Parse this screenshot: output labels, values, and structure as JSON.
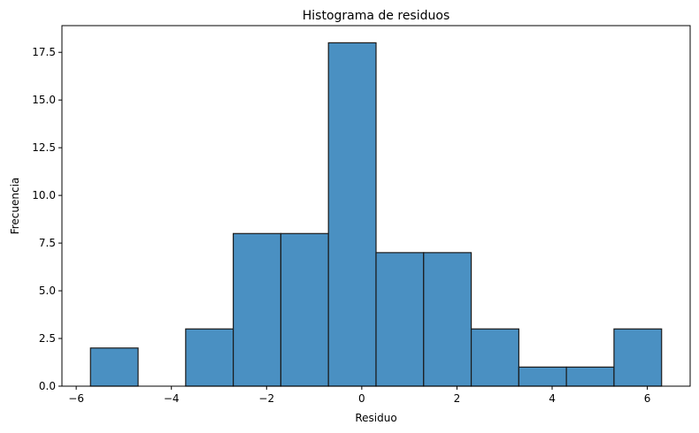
{
  "chart_data": {
    "type": "bar",
    "subtype": "histogram",
    "title": "Histograma de residuos",
    "xlabel": "Residuo",
    "ylabel": "Frecuencia",
    "bins": [
      {
        "x0": -5.7,
        "x1": -4.7,
        "count": 2
      },
      {
        "x0": -4.7,
        "x1": -3.7,
        "count": 0
      },
      {
        "x0": -3.7,
        "x1": -2.7,
        "count": 3
      },
      {
        "x0": -2.7,
        "x1": -1.7,
        "count": 8
      },
      {
        "x0": -1.7,
        "x1": -0.7,
        "count": 8
      },
      {
        "x0": -0.7,
        "x1": 0.3,
        "count": 18
      },
      {
        "x0": 0.3,
        "x1": 1.3,
        "count": 7
      },
      {
        "x0": 1.3,
        "x1": 2.3,
        "count": 7
      },
      {
        "x0": 2.3,
        "x1": 3.3,
        "count": 3
      },
      {
        "x0": 3.3,
        "x1": 4.3,
        "count": 1
      },
      {
        "x0": 4.3,
        "x1": 5.3,
        "count": 1
      },
      {
        "x0": 5.3,
        "x1": 6.3,
        "count": 3
      }
    ],
    "xlim": [
      -6.3,
      6.9
    ],
    "ylim": [
      0,
      18.9
    ],
    "xticks": [
      -6,
      -4,
      -2,
      0,
      2,
      4,
      6
    ],
    "xtick_labels": [
      "−6",
      "−4",
      "−2",
      "0",
      "2",
      "4",
      "6"
    ],
    "yticks": [
      0,
      2.5,
      5,
      7.5,
      10,
      12.5,
      15,
      17.5
    ],
    "ytick_labels": [
      "0.0",
      "2.5",
      "5.0",
      "7.5",
      "10.0",
      "12.5",
      "15.0",
      "17.5"
    ],
    "grid": false,
    "legend": "none",
    "bar_color": "#4a90c2",
    "edge_color": "#1a1a1a"
  }
}
